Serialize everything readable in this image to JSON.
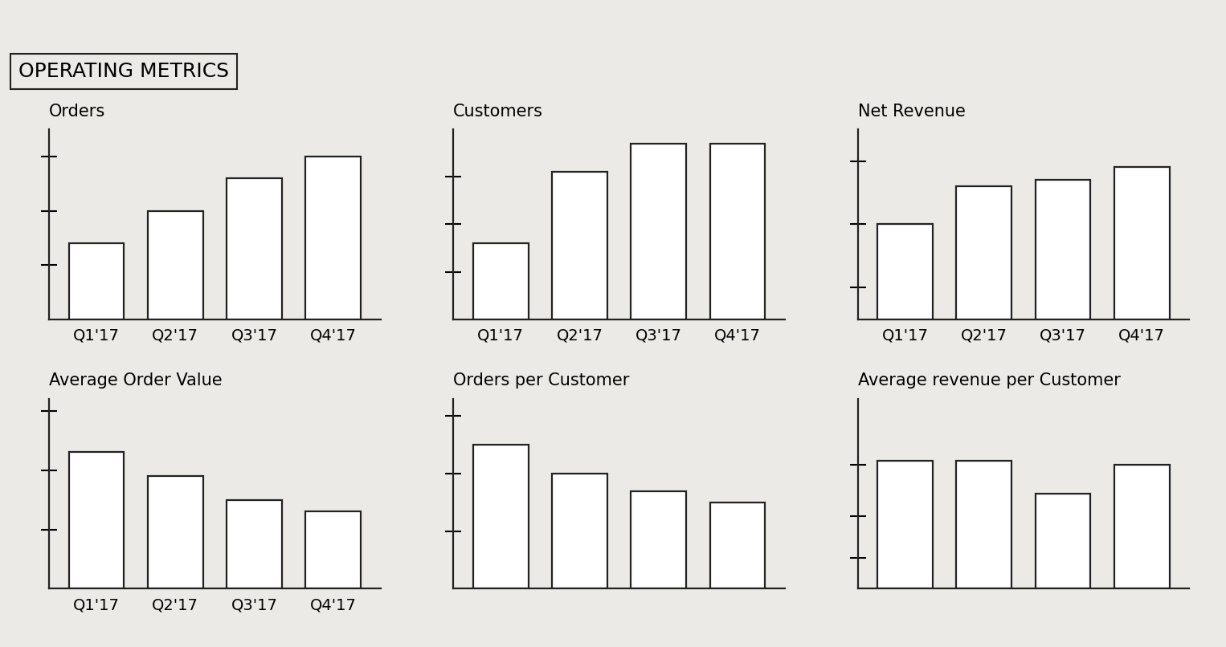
{
  "title": "OPERATING METRICS",
  "chart_data": [
    {
      "type": "bar",
      "title": "Orders",
      "categories": [
        "Q1'17",
        "Q2'17",
        "Q3'17",
        "Q4'17"
      ],
      "values": [
        1.4,
        2.0,
        2.6,
        3.0
      ],
      "color": "#ffffff",
      "ylim": [
        0,
        3.5
      ],
      "yticks": [
        1,
        2,
        3
      ],
      "tick_labels": "x",
      "grid": false
    },
    {
      "type": "bar",
      "title": "Customers",
      "categories": [
        "Q1'17",
        "Q2'17",
        "Q3'17",
        "Q4'17"
      ],
      "values": [
        1.6,
        3.1,
        3.7,
        3.7
      ],
      "color": "#ffffff",
      "ylim": [
        0,
        4
      ],
      "yticks": [
        1,
        2,
        3
      ],
      "tick_labels": "x",
      "grid": false
    },
    {
      "type": "bar",
      "title": "Net Revenue",
      "categories": [
        "Q1'17",
        "Q2'17",
        "Q3'17",
        "Q4'17"
      ],
      "values": [
        1.5,
        2.1,
        2.2,
        2.4
      ],
      "color": "#ffffff",
      "ylim": [
        0,
        3
      ],
      "yticks": [
        0.5,
        1.5,
        2.5
      ],
      "tick_labels": "x",
      "grid": false
    },
    {
      "type": "bar",
      "title": "Average Order Value",
      "categories": [
        "Q1'17",
        "Q2'17",
        "Q3'17",
        "Q4'17"
      ],
      "values": [
        2.3,
        1.9,
        1.5,
        1.3
      ],
      "color": "#ffffff",
      "ylim": [
        0,
        3.2
      ],
      "yticks": [
        1,
        2,
        3
      ],
      "tick_labels": "x",
      "grid": false
    },
    {
      "type": "bar",
      "title": "Orders per Customer",
      "categories": [
        null,
        null,
        null,
        null
      ],
      "values": [
        2.5,
        2.0,
        1.7,
        1.5
      ],
      "color": "#ffffff",
      "ylim": [
        0,
        3.3
      ],
      "yticks": [
        1,
        2,
        3
      ],
      "tick_labels": false,
      "grid": false
    },
    {
      "type": "bar",
      "title": "Average revenue per Customer",
      "categories": [
        null,
        null,
        null,
        null
      ],
      "values": [
        3.1,
        3.1,
        2.3,
        3.0
      ],
      "color": "#ffffff",
      "ylim": [
        0,
        4.6
      ],
      "yticks": [
        0.75,
        1.75,
        3
      ],
      "tick_labels": false,
      "grid": false
    }
  ]
}
